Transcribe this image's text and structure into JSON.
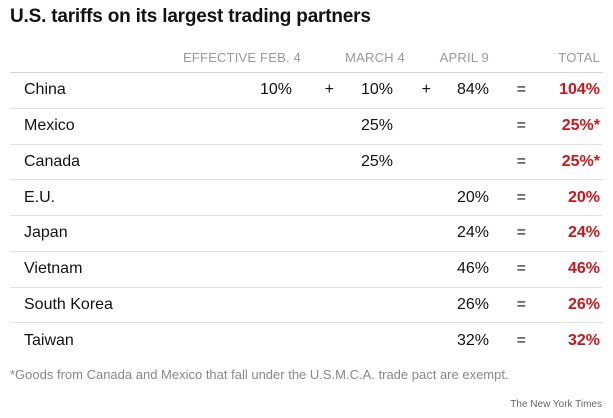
{
  "chart_data": {
    "type": "table",
    "title": "U.S. tariffs on its largest trading partners",
    "columns": {
      "feb4": "EFFECTIVE FEB. 4",
      "mar4": "MARCH 4",
      "apr9": "APRIL 9",
      "total": "TOTAL"
    },
    "rows": [
      {
        "country": "China",
        "feb4": "10%",
        "plus1": "+",
        "mar4": "10%",
        "plus2": "+",
        "apr9": "84%",
        "eq": "=",
        "total": "104%"
      },
      {
        "country": "Mexico",
        "feb4": "",
        "plus1": "",
        "mar4": "25%",
        "plus2": "",
        "apr9": "",
        "eq": "=",
        "total": "25%*"
      },
      {
        "country": "Canada",
        "feb4": "",
        "plus1": "",
        "mar4": "25%",
        "plus2": "",
        "apr9": "",
        "eq": "=",
        "total": "25%*"
      },
      {
        "country": "E.U.",
        "feb4": "",
        "plus1": "",
        "mar4": "",
        "plus2": "",
        "apr9": "20%",
        "eq": "=",
        "total": "20%"
      },
      {
        "country": "Japan",
        "feb4": "",
        "plus1": "",
        "mar4": "",
        "plus2": "",
        "apr9": "24%",
        "eq": "=",
        "total": "24%"
      },
      {
        "country": "Vietnam",
        "feb4": "",
        "plus1": "",
        "mar4": "",
        "plus2": "",
        "apr9": "46%",
        "eq": "=",
        "total": "46%"
      },
      {
        "country": "South Korea",
        "feb4": "",
        "plus1": "",
        "mar4": "",
        "plus2": "",
        "apr9": "26%",
        "eq": "=",
        "total": "26%"
      },
      {
        "country": "Taiwan",
        "feb4": "",
        "plus1": "",
        "mar4": "",
        "plus2": "",
        "apr9": "32%",
        "eq": "=",
        "total": "32%"
      }
    ],
    "footnote": "*Goods from Canada and Mexico that fall under the U.S.M.C.A. trade pact are exempt.",
    "credit": "The New York Times",
    "colors": {
      "total": "#c8161d",
      "header": "#999999",
      "text": "#121212"
    }
  }
}
